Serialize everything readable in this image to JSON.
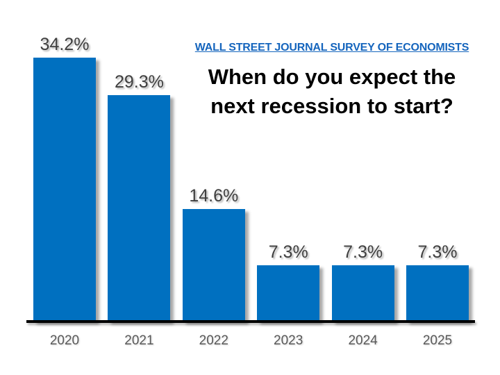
{
  "header": {
    "source": "WALL STREET JOURNAL SURVEY OF ECONOMISTS",
    "title_line1": "When do you expect the",
    "title_line2": "next recession to start?"
  },
  "chart_data": {
    "type": "bar",
    "title": "When do you expect the next recession to start?",
    "subtitle": "WALL STREET JOURNAL SURVEY OF ECONOMISTS",
    "categories": [
      "2020",
      "2021",
      "2022",
      "2023",
      "2024",
      "2025"
    ],
    "values": [
      34.2,
      29.3,
      14.6,
      7.3,
      7.3,
      7.3
    ],
    "value_labels": [
      "34.2%",
      "29.3%",
      "14.6%",
      "7.3%",
      "7.3%",
      "7.3%"
    ],
    "xlabel": "",
    "ylabel": "",
    "ylim": [
      0,
      36
    ],
    "grid": false,
    "legend": false,
    "data_labels": true,
    "bar_color": "#0070C0"
  },
  "colors": {
    "background": "#FFFFFF",
    "bar": "#0070C0",
    "source_blue": "#1565BD",
    "title_black": "#000000",
    "value_label": "#3F3F3F",
    "year_label": "#595959",
    "axis": "#000000"
  }
}
